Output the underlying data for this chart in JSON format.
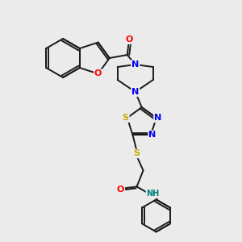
{
  "bg_color": "#ebebeb",
  "line_color": "#1a1a1a",
  "atom_colors": {
    "O": "#ff0000",
    "N": "#0000ee",
    "S": "#ccaa00",
    "NH": "#008080",
    "C": "#1a1a1a"
  },
  "lw": 1.4
}
